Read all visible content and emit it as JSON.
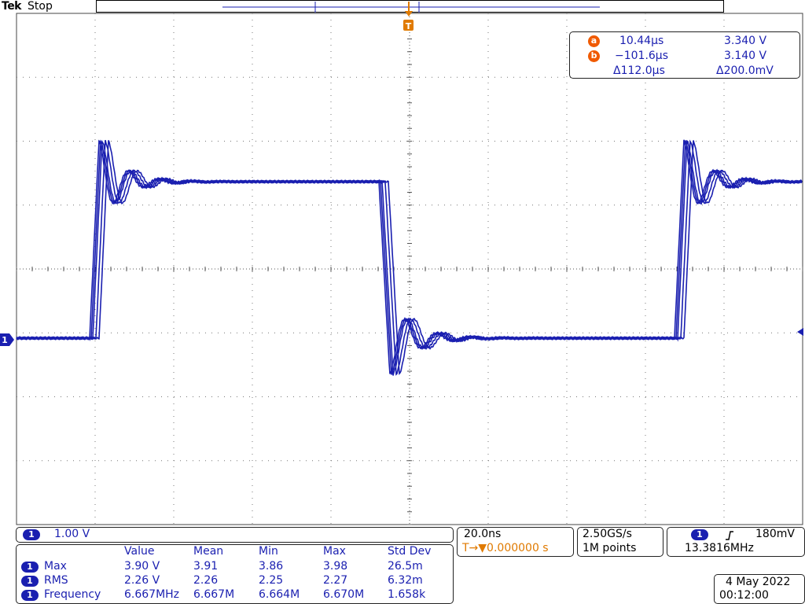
{
  "header": {
    "brand": "Tek",
    "run_state": "Stop",
    "trigger_marker": "T"
  },
  "colors": {
    "trace": "#1a1fb0",
    "trigger": "#e07a00",
    "cursor_badge": "#f05a00",
    "grid": "#555555"
  },
  "cursors": {
    "a": {
      "badge": "a",
      "time": "10.44µs",
      "volt": "3.340 V"
    },
    "b": {
      "badge": "b",
      "time": "−101.6µs",
      "volt": "3.140 V"
    },
    "delta": {
      "time": "Δ112.0µs",
      "volt": "Δ200.0mV"
    }
  },
  "channel": {
    "id": "1",
    "scale": "1.00 V"
  },
  "timebase": {
    "scale": "20.0ns",
    "trigger_pos": "T→▼0.000000 s"
  },
  "acquisition": {
    "rate": "2.50GS/s",
    "points": "1M points"
  },
  "trigger": {
    "channel": "1",
    "slope_icon": "rising-edge-icon",
    "level": "180mV",
    "frequency": "13.3816MHz"
  },
  "measurements": {
    "columns": [
      "Value",
      "Mean",
      "Min",
      "Max",
      "Std Dev"
    ],
    "rows": [
      {
        "channel": "1",
        "name": "Max",
        "values": [
          "3.90 V",
          "3.91",
          "3.86",
          "3.98",
          "26.5m"
        ]
      },
      {
        "channel": "1",
        "name": "RMS",
        "values": [
          "2.26 V",
          "2.26",
          "2.25",
          "2.27",
          "6.32m"
        ]
      },
      {
        "channel": "1",
        "name": "Frequency",
        "values": [
          "6.667MHz",
          "6.667M",
          "6.664M",
          "6.670M",
          "1.658k"
        ]
      }
    ]
  },
  "datetime": {
    "date": "4 May 2022",
    "time": "00:12:00"
  }
}
